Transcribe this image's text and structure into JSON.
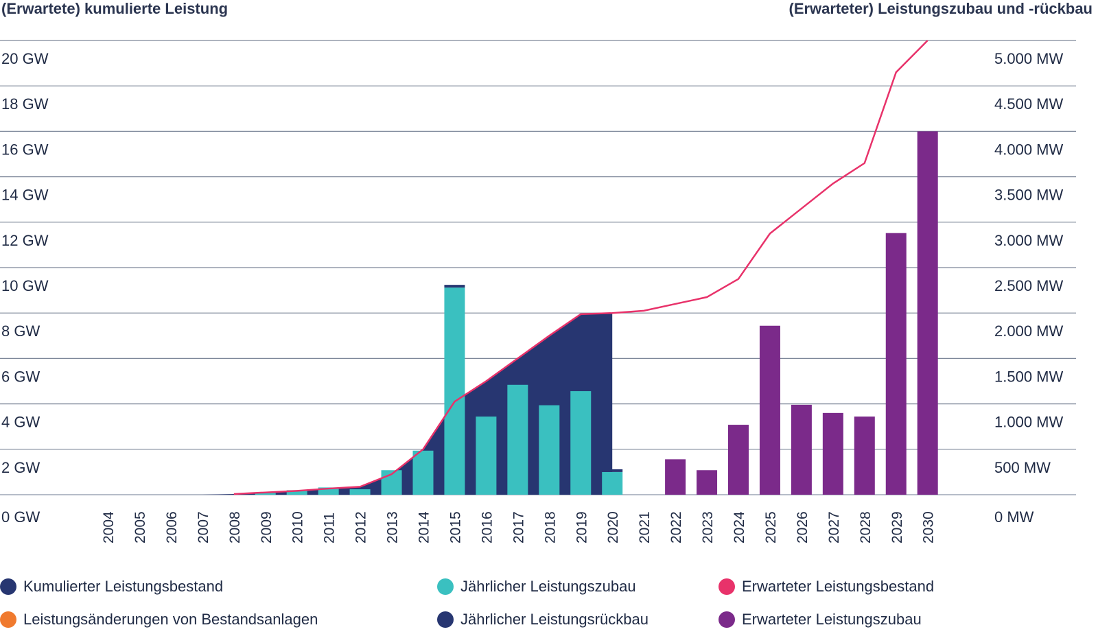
{
  "chart_data": {
    "type": "bar",
    "title_left": "(Erwartete) kumulierte Leistung",
    "title_right": "(Erwarteter) Leistungszubau und -rückbau",
    "left_axis": {
      "ticks": [
        "0 GW",
        "2 GW",
        "4 GW",
        "6 GW",
        "8 GW",
        "10 GW",
        "12 GW",
        "14 GW",
        "16 GW",
        "18 GW",
        "20 GW"
      ],
      "ylim": [
        0,
        20
      ],
      "unit": "GW"
    },
    "right_axis": {
      "ticks": [
        "0 MW",
        "500 MW",
        "1.000 MW",
        "1.500 MW",
        "2.000 MW",
        "2.500 MW",
        "3.000 MW",
        "3.500 MW",
        "4.000 MW",
        "4.500 MW",
        "5.000 MW"
      ],
      "ylim": [
        0,
        5000
      ],
      "unit": "MW"
    },
    "categories": [
      "2004",
      "2005",
      "2006",
      "2007",
      "2008",
      "2009",
      "2010",
      "2011",
      "2012",
      "2013",
      "2014",
      "2015",
      "2016",
      "2017",
      "2018",
      "2019",
      "2020",
      "2021",
      "2022",
      "2023",
      "2024",
      "2025",
      "2026",
      "2027",
      "2028",
      "2029",
      "2030"
    ],
    "series": [
      {
        "name": "Kumulierter Leistungsbestand",
        "axis": "left",
        "kind": "area",
        "color": "#273671",
        "values": [
          0,
          0,
          0,
          0,
          0.03,
          0.1,
          0.17,
          0.27,
          0.35,
          0.9,
          2.0,
          4.1,
          5.0,
          6.0,
          7.0,
          7.95,
          8.0,
          null,
          null,
          null,
          null,
          null,
          null,
          null,
          null,
          null,
          null
        ]
      },
      {
        "name": "Jährlicher Leistungszubau",
        "axis": "right",
        "kind": "bar",
        "color": "#3ac0c0",
        "values": [
          0,
          0,
          0,
          0,
          0,
          20,
          50,
          80,
          60,
          270,
          485,
          2280,
          860,
          1210,
          985,
          1140,
          250,
          0,
          null,
          null,
          null,
          null,
          null,
          null,
          null,
          null,
          null
        ]
      },
      {
        "name": "Jährlicher Leistungsrückbau",
        "axis": "right",
        "kind": "bar",
        "color": "#273671",
        "values": [
          0,
          0,
          0,
          0,
          0,
          0,
          0,
          0,
          0,
          0,
          0,
          30,
          0,
          0,
          0,
          0,
          30,
          0,
          null,
          null,
          null,
          null,
          null,
          null,
          null,
          null,
          null
        ]
      },
      {
        "name": "Leistungsänderungen von Bestandsanlagen",
        "axis": "right",
        "kind": "bar",
        "color": "#f07a2e",
        "values": [
          0,
          0,
          0,
          0,
          0,
          0,
          0,
          0,
          0,
          0,
          0,
          0,
          0,
          0,
          0,
          0,
          0,
          0,
          null,
          null,
          null,
          null,
          null,
          null,
          null,
          null,
          null
        ]
      },
      {
        "name": "Erwarteter Leistungsbestand",
        "axis": "left",
        "kind": "line",
        "color": "#e8326a",
        "values": [
          null,
          null,
          null,
          null,
          0.03,
          0.1,
          0.17,
          0.27,
          0.35,
          0.9,
          2.0,
          4.1,
          5.0,
          6.0,
          7.0,
          7.95,
          8.0,
          8.1,
          8.4,
          8.7,
          9.5,
          11.5,
          12.6,
          13.7,
          14.6,
          18.6,
          20.0
        ]
      },
      {
        "name": "Erwarteter Leistungszubau",
        "axis": "right",
        "kind": "bar",
        "color": "#7b2a8a",
        "values": [
          null,
          null,
          null,
          null,
          null,
          null,
          null,
          null,
          null,
          null,
          null,
          null,
          null,
          null,
          null,
          null,
          null,
          0,
          390,
          270,
          770,
          1860,
          990,
          900,
          860,
          2880,
          4000
        ]
      }
    ],
    "legend": [
      "Kumulierter Leistungsbestand",
      "Jährlicher Leistungszubau",
      "Erwarteter Leistungsbestand",
      "Leistungsänderungen von Bestandsanlagen",
      "Jährlicher Leistungsrückbau",
      "Erwarteter Leistungszubau"
    ],
    "legend_colors": [
      "#273671",
      "#3ac0c0",
      "#e8326a",
      "#f07a2e",
      "#273671",
      "#7b2a8a"
    ],
    "grid": true
  }
}
